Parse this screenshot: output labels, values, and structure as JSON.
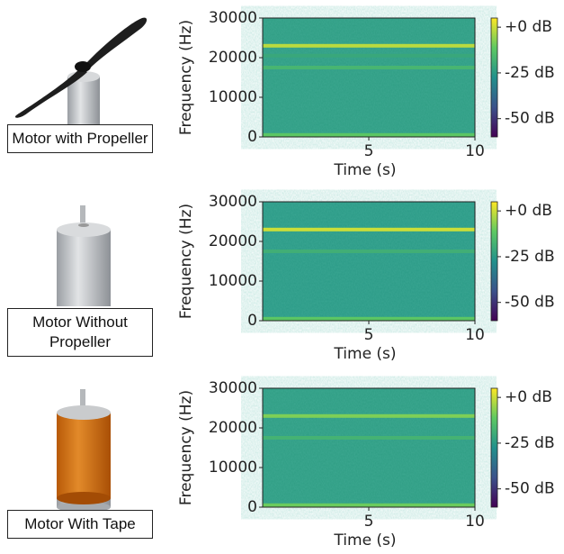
{
  "chart_data": [
    {
      "type": "spectrogram",
      "label": "Motor with Propeller",
      "xlabel": "Time (s)",
      "ylabel": "Frequency (Hz)",
      "xlim": [
        0,
        10
      ],
      "xticks": [
        5,
        10
      ],
      "ylim": [
        0,
        30000
      ],
      "yticks": [
        0,
        10000,
        20000,
        30000
      ],
      "colormap": "viridis",
      "clim": [
        -60,
        5
      ],
      "cticks": [
        {
          "value": 0,
          "label": "+0 dB"
        },
        {
          "value": -25,
          "label": "-25 dB"
        },
        {
          "value": -50,
          "label": "-50 dB"
        }
      ],
      "background": -24,
      "bands": [
        {
          "frequency": 23000,
          "level": -2
        },
        {
          "frequency": 20500,
          "level": -21
        },
        {
          "frequency": 17500,
          "level": -17
        },
        {
          "frequency": 500,
          "level": -12
        }
      ]
    },
    {
      "type": "spectrogram",
      "label": "Motor Without Propeller",
      "xlabel": "Time (s)",
      "ylabel": "Frequency (Hz)",
      "xlim": [
        0,
        10
      ],
      "xticks": [
        5,
        10
      ],
      "ylim": [
        0,
        30000
      ],
      "yticks": [
        0,
        10000,
        20000,
        30000
      ],
      "colormap": "viridis",
      "clim": [
        -60,
        5
      ],
      "cticks": [
        {
          "value": 0,
          "label": "+0 dB"
        },
        {
          "value": -25,
          "label": "-25 dB"
        },
        {
          "value": -50,
          "label": "-50 dB"
        }
      ],
      "background": -25,
      "bands": [
        {
          "frequency": 23000,
          "level": 0
        },
        {
          "frequency": 17500,
          "level": -19
        },
        {
          "frequency": 500,
          "level": -12
        }
      ]
    },
    {
      "type": "spectrogram",
      "label": "Motor With Tape",
      "xlabel": "Time (s)",
      "ylabel": "Frequency (Hz)",
      "xlim": [
        0,
        10
      ],
      "xticks": [
        5,
        10
      ],
      "ylim": [
        0,
        30000
      ],
      "yticks": [
        0,
        10000,
        20000,
        30000
      ],
      "colormap": "viridis",
      "clim": [
        -60,
        5
      ],
      "cticks": [
        {
          "value": 0,
          "label": "+0 dB"
        },
        {
          "value": -25,
          "label": "-25 dB"
        },
        {
          "value": -50,
          "label": "-50 dB"
        }
      ],
      "background": -24,
      "bands": [
        {
          "frequency": 23000,
          "level": -8
        },
        {
          "frequency": 17500,
          "level": -18
        },
        {
          "frequency": 500,
          "level": -10
        }
      ]
    }
  ]
}
